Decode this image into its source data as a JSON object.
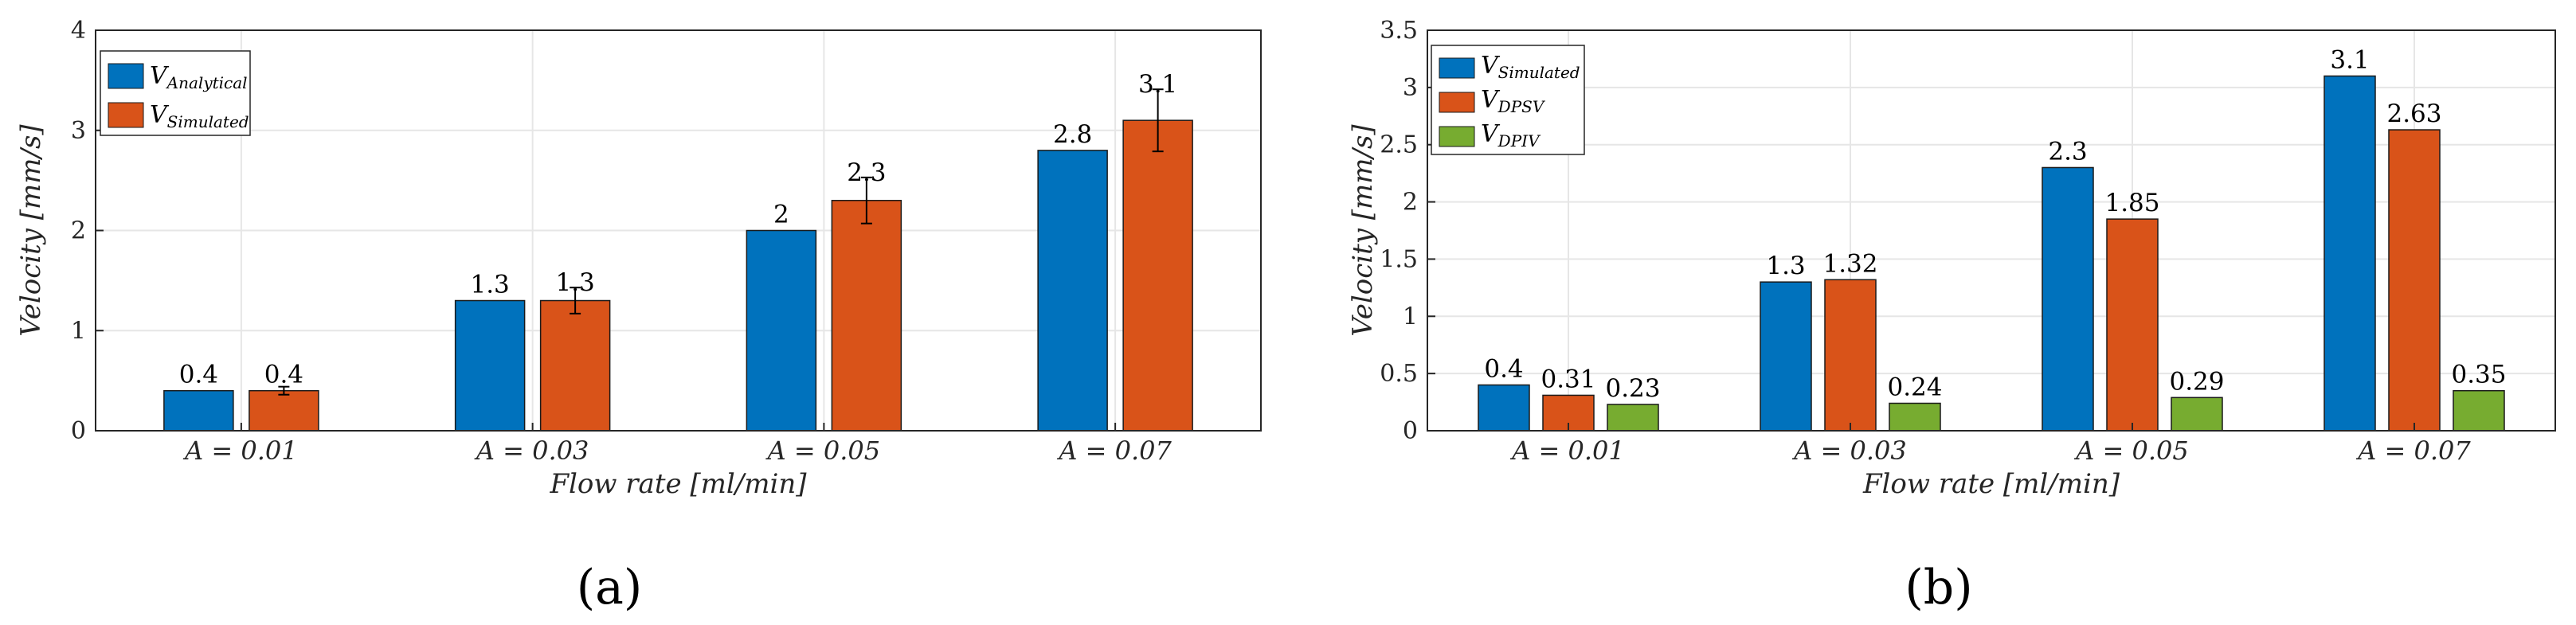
{
  "chart_data": [
    {
      "type": "bar",
      "panel_label": "(a)",
      "xlabel": "Flow rate [ml/min]",
      "ylabel": "Velocity [mm/s]",
      "ylim": [
        0,
        4
      ],
      "yticks": [
        0,
        1,
        2,
        3,
        4
      ],
      "ytick_labels": [
        "0",
        "1",
        "2",
        "3",
        "4"
      ],
      "categories": [
        "A = 0.01",
        "A = 0.03",
        "A = 0.05",
        "A = 0.07"
      ],
      "grid": true,
      "legend_position": "top-left",
      "series": [
        {
          "name": "V",
          "subscript": "Analytical",
          "color": "#0072BD",
          "values": [
            0.4,
            1.3,
            2.0,
            2.8
          ],
          "labels": [
            "0.4",
            "1.3",
            "2",
            "2.8"
          ]
        },
        {
          "name": "V",
          "subscript": "Simulated",
          "color": "#D95319",
          "values": [
            0.4,
            1.3,
            2.3,
            3.1
          ],
          "labels": [
            "0.4",
            "1.3",
            "2.3",
            "3.1"
          ],
          "errors": [
            0.04,
            0.13,
            0.23,
            0.31
          ]
        }
      ]
    },
    {
      "type": "bar",
      "panel_label": "(b)",
      "xlabel": "Flow rate [ml/min]",
      "ylabel": "Velocity [mm/s]",
      "ylim": [
        0,
        3.5
      ],
      "yticks": [
        0,
        0.5,
        1,
        1.5,
        2,
        2.5,
        3,
        3.5
      ],
      "ytick_labels": [
        "0",
        "0.5",
        "1",
        "1.5",
        "2",
        "2.5",
        "3",
        "3.5"
      ],
      "categories": [
        "A = 0.01",
        "A = 0.03",
        "A = 0.05",
        "A = 0.07"
      ],
      "grid": true,
      "legend_position": "top-left",
      "series": [
        {
          "name": "V",
          "subscript": "Simulated",
          "color": "#0072BD",
          "values": [
            0.4,
            1.3,
            2.3,
            3.1
          ],
          "labels": [
            "0.4",
            "1.3",
            "2.3",
            "3.1"
          ]
        },
        {
          "name": "V",
          "subscript": "DPSV",
          "color": "#D95319",
          "values": [
            0.31,
            1.32,
            1.85,
            2.63
          ],
          "labels": [
            "0.31",
            "1.32",
            "1.85",
            "2.63"
          ]
        },
        {
          "name": "V",
          "subscript": "DPIV",
          "color": "#77AC30",
          "values": [
            0.23,
            0.24,
            0.29,
            0.35
          ],
          "labels": [
            "0.23",
            "0.24",
            "0.29",
            "0.35"
          ]
        }
      ]
    }
  ]
}
